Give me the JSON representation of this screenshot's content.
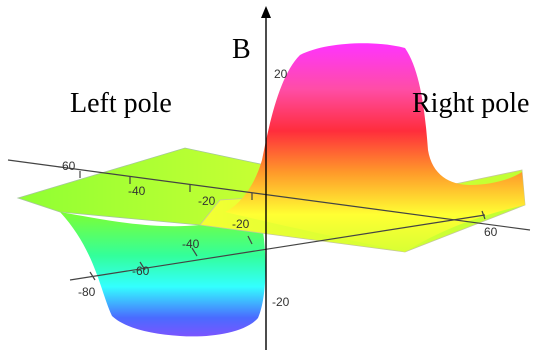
{
  "labels": {
    "left_pole": "Left pole",
    "right_pole": "Right pole",
    "b_axis": "B"
  },
  "x_ticks": [
    "-60",
    "-40",
    "-20"
  ],
  "y_ticks": [
    "-80",
    "-60",
    "-40",
    "-20",
    "60"
  ],
  "z_ticks": [
    "20",
    "-20"
  ],
  "colors": {
    "magenta": "#ff33ff",
    "red": "#ff2d3c",
    "orange": "#ff9a2a",
    "yellow": "#ffff33",
    "green": "#66ff33",
    "cyan": "#33ffff",
    "blue": "#4a6bff",
    "violet": "#7a55ff"
  }
}
